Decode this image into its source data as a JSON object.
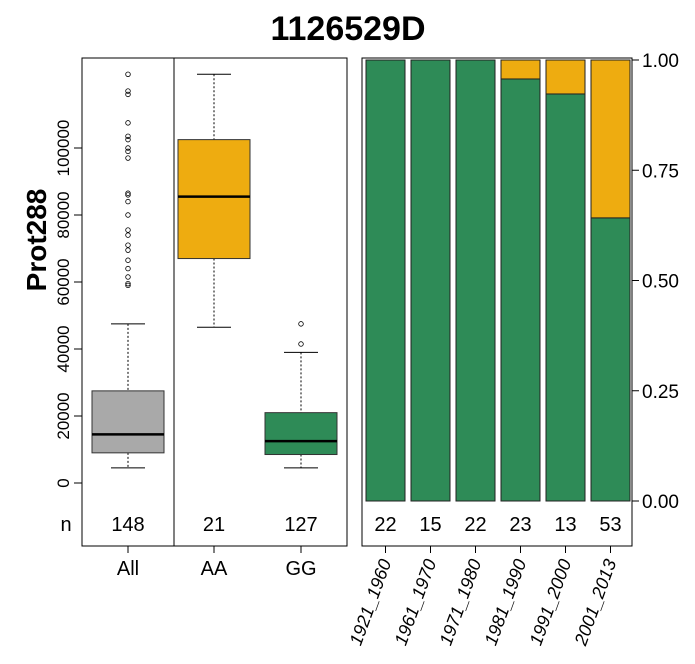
{
  "chart_data": [
    {
      "type": "boxplot",
      "title": "1126529D",
      "ylabel": "Prot288",
      "ylim": [
        -5000,
        115000
      ],
      "yticks": [
        0,
        20000,
        40000,
        60000,
        80000,
        100000
      ],
      "n_label": "n",
      "groups": [
        {
          "name": "All",
          "n": "148",
          "color": "#a9a9a9",
          "q1": 9000,
          "median": 14500,
          "q3": 27500,
          "whisker_low": 4500,
          "whisker_high": 47500,
          "outliers": [
            59000,
            59500,
            61500,
            64000,
            66500,
            69500,
            71000,
            74000,
            75500,
            80000,
            84000,
            86000,
            86500,
            97000,
            99000,
            100000,
            102500,
            103500,
            107500,
            116000,
            117000,
            122000
          ]
        },
        {
          "name": "AA",
          "n": "21",
          "color": "#eeac10",
          "q1": 67000,
          "median": 85500,
          "q3": 102500,
          "whisker_low": 46500,
          "whisker_high": 122000,
          "outliers": []
        },
        {
          "name": "GG",
          "n": "127",
          "color": "#2e8b57",
          "q1": 8500,
          "median": 12500,
          "q3": 21000,
          "whisker_low": 4500,
          "whisker_high": 39000,
          "outliers": [
            41500,
            47500
          ]
        }
      ]
    },
    {
      "type": "stacked_bar",
      "ylim": [
        0,
        1
      ],
      "yticks": [
        "0.00",
        "0.25",
        "0.50",
        "0.75",
        "1.00"
      ],
      "categories": [
        "1921_1960",
        "1961_1970",
        "1971_1980",
        "1981_1990",
        "1991_2000",
        "2001_2013"
      ],
      "n": [
        "22",
        "15",
        "22",
        "23",
        "13",
        "53"
      ],
      "series": [
        {
          "color": "#2e8b57",
          "values": [
            1.0,
            1.0,
            1.0,
            0.957,
            0.923,
            0.642
          ]
        },
        {
          "color": "#eeac10",
          "values": [
            0.0,
            0.0,
            0.0,
            0.043,
            0.077,
            0.358
          ]
        }
      ]
    }
  ]
}
